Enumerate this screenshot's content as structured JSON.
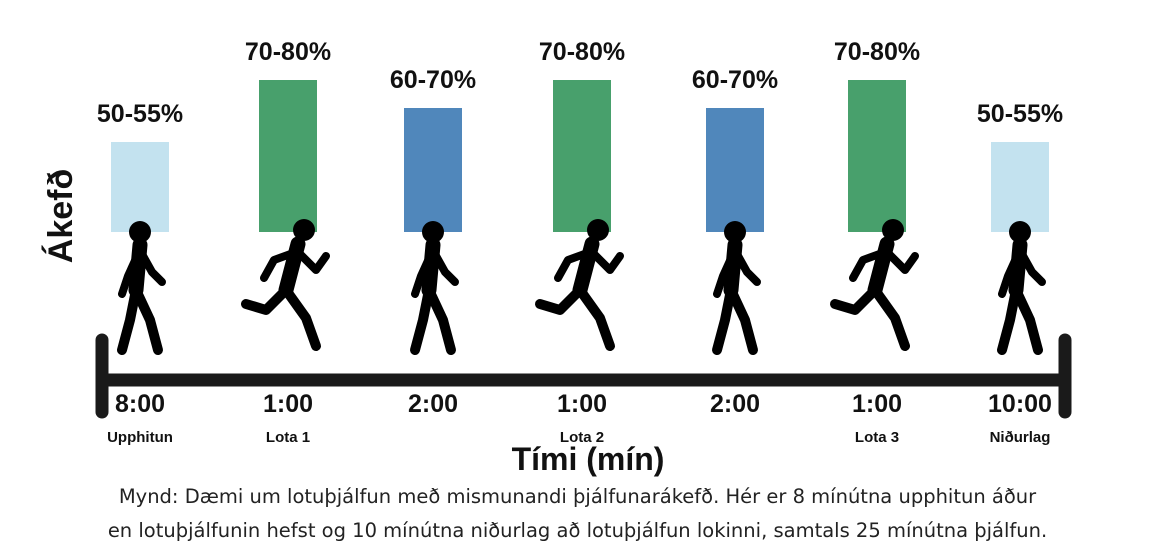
{
  "y_axis_label": "Ákefð",
  "x_axis_label": "Tími (mín)",
  "colors": {
    "light": "#c3e2ef",
    "green": "#48a06c",
    "blue": "#5087bb",
    "text": "#111111",
    "axis": "#1a1a1a"
  },
  "segments": [
    {
      "intensity": "50-55%",
      "level": 0.525,
      "color_key": "light",
      "figure": "walk",
      "duration": "8:00",
      "label": "Upphitun"
    },
    {
      "intensity": "70-80%",
      "level": 0.75,
      "color_key": "green",
      "figure": "run",
      "duration": "1:00",
      "label": "Lota 1"
    },
    {
      "intensity": "60-70%",
      "level": 0.65,
      "color_key": "blue",
      "figure": "walk",
      "duration": "2:00",
      "label": ""
    },
    {
      "intensity": "70-80%",
      "level": 0.75,
      "color_key": "green",
      "figure": "run",
      "duration": "1:00",
      "label": "Lota 2"
    },
    {
      "intensity": "60-70%",
      "level": 0.65,
      "color_key": "blue",
      "figure": "walk",
      "duration": "2:00",
      "label": ""
    },
    {
      "intensity": "70-80%",
      "level": 0.75,
      "color_key": "green",
      "figure": "run",
      "duration": "1:00",
      "label": "Lota 3"
    },
    {
      "intensity": "50-55%",
      "level": 0.525,
      "color_key": "light",
      "figure": "walk",
      "duration": "10:00",
      "label": "Niðurlag"
    }
  ],
  "caption": {
    "line1": "Mynd: Dæmi um lotuþjálfun með mismunandi þjálfunarákefð. Hér er 8 mínútna upphitun áður",
    "line2": "en lotuþjálfunin hefst og 10 mínútna niðurlag að lotuþjálfun lokinni, samtals 25 mínútna þjálfun."
  }
}
